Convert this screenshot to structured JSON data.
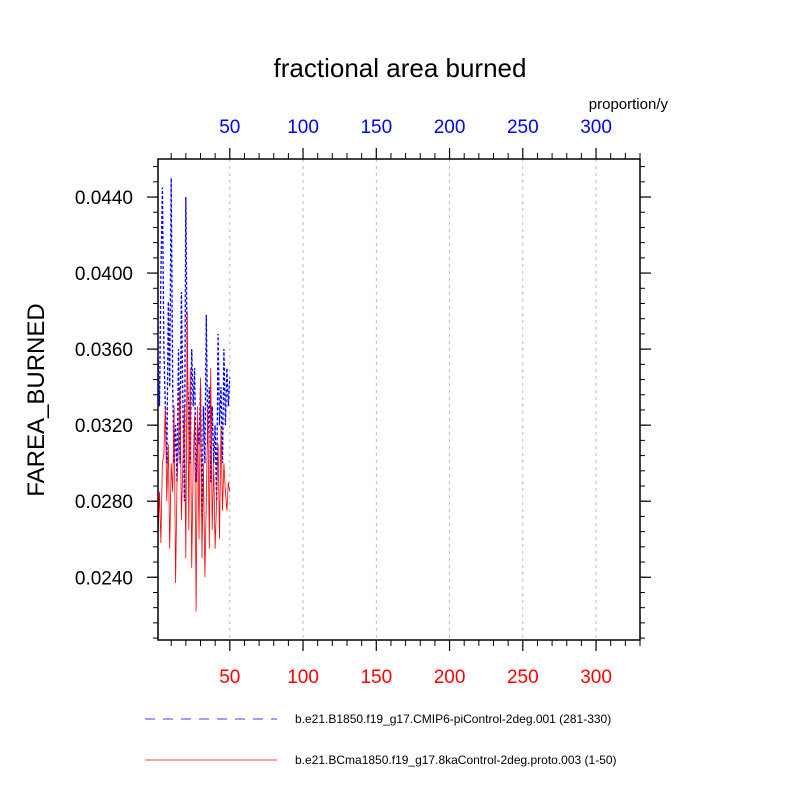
{
  "chart_data": {
    "type": "line",
    "title": "fractional area burned",
    "units_label": "proportion/y",
    "ylabel": "FAREA_BURNED",
    "xlim": [
      1,
      330
    ],
    "ylim": [
      0.0207,
      0.046
    ],
    "x_ticks": [
      50,
      100,
      150,
      200,
      250,
      300
    ],
    "x_tick_labels": [
      "50",
      "100",
      "150",
      "200",
      "250",
      "300"
    ],
    "y_ticks": [
      0.024,
      0.028,
      0.032,
      0.036,
      0.04,
      0.044
    ],
    "y_tick_labels": [
      "0.0240",
      "0.0280",
      "0.0320",
      "0.0360",
      "0.0400",
      "0.0440"
    ],
    "grid": "vertical dashed at x ticks",
    "series": [
      {
        "name": "b.e21.B1850.f19_g17.CMIP6-piControl-2deg.001 (281-330)",
        "axis": "top",
        "color": "#0000ff",
        "style": "dashed",
        "x": [
          1,
          2,
          3,
          4,
          5,
          6,
          7,
          8,
          9,
          10,
          11,
          12,
          13,
          14,
          15,
          16,
          17,
          18,
          19,
          20,
          21,
          22,
          23,
          24,
          25,
          26,
          27,
          28,
          29,
          30,
          31,
          32,
          33,
          34,
          35,
          36,
          37,
          38,
          39,
          40,
          41,
          42,
          43,
          44,
          45,
          46,
          47,
          48,
          49,
          50
        ],
        "values": [
          0.0355,
          0.033,
          0.04,
          0.0445,
          0.036,
          0.033,
          0.03,
          0.0385,
          0.034,
          0.045,
          0.034,
          0.03,
          0.032,
          0.029,
          0.036,
          0.03,
          0.039,
          0.033,
          0.028,
          0.044,
          0.0345,
          0.033,
          0.03,
          0.036,
          0.033,
          0.035,
          0.029,
          0.032,
          0.031,
          0.034,
          0.027,
          0.033,
          0.03,
          0.0378,
          0.031,
          0.034,
          0.029,
          0.033,
          0.03,
          0.032,
          0.028,
          0.0368,
          0.032,
          0.034,
          0.03,
          0.036,
          0.032,
          0.035,
          0.033,
          0.0345
        ]
      },
      {
        "name": "b.e21.BCma1850.f19_g17.8kaControl-2deg.proto.003 (1-50)",
        "axis": "bottom",
        "color": "#ff0000",
        "style": "solid",
        "x": [
          1,
          2,
          3,
          4,
          5,
          6,
          7,
          8,
          9,
          10,
          11,
          12,
          13,
          14,
          15,
          16,
          17,
          18,
          19,
          20,
          21,
          22,
          23,
          24,
          25,
          26,
          27,
          28,
          29,
          30,
          31,
          32,
          33,
          34,
          35,
          36,
          37,
          38,
          39,
          40,
          41,
          42,
          43,
          44,
          45,
          46,
          47,
          48,
          49,
          50
        ],
        "values": [
          0.026,
          0.0285,
          0.0258,
          0.03,
          0.0305,
          0.033,
          0.028,
          0.031,
          0.0255,
          0.03,
          0.0285,
          0.033,
          0.0237,
          0.029,
          0.031,
          0.034,
          0.027,
          0.03,
          0.033,
          0.025,
          0.038,
          0.0265,
          0.035,
          0.0245,
          0.03,
          0.0325,
          0.0222,
          0.033,
          0.026,
          0.0345,
          0.025,
          0.03,
          0.024,
          0.028,
          0.033,
          0.0255,
          0.035,
          0.0265,
          0.03,
          0.0255,
          0.028,
          0.031,
          0.026,
          0.032,
          0.0275,
          0.03,
          0.0285,
          0.0275,
          0.029,
          0.0285
        ]
      }
    ]
  }
}
